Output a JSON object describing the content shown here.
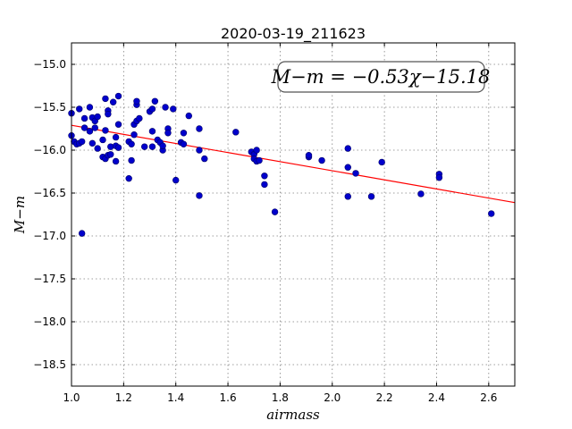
{
  "chart_data": {
    "type": "scatter",
    "title": "2020-03-19_211623",
    "xlabel": "airmass",
    "ylabel": "M−m",
    "xlim": [
      1.0,
      2.7
    ],
    "ylim": [
      -18.75,
      -14.75
    ],
    "y_inverted": true,
    "grid": true,
    "x_ticks": [
      "1.0",
      "1.2",
      "1.4",
      "1.6",
      "1.8",
      "2.0",
      "2.2",
      "2.4",
      "2.6"
    ],
    "y_ticks": [
      "−15.0",
      "−15.5",
      "−16.0",
      "−16.5",
      "−17.0",
      "−17.5",
      "−18.0",
      "−18.5"
    ],
    "point_color": "#0000cc",
    "fit_color": "#ff0000",
    "annotation": "M−m = −0.53χ−15.18",
    "fit": {
      "slope": -0.53,
      "intercept": -15.18
    },
    "points": [
      [
        1.0,
        -15.57
      ],
      [
        1.0,
        -15.83
      ],
      [
        1.01,
        -15.9
      ],
      [
        1.02,
        -15.93
      ],
      [
        1.03,
        -15.92
      ],
      [
        1.03,
        -15.52
      ],
      [
        1.04,
        -16.97
      ],
      [
        1.04,
        -15.9
      ],
      [
        1.05,
        -15.63
      ],
      [
        1.05,
        -15.74
      ],
      [
        1.07,
        -15.5
      ],
      [
        1.07,
        -15.78
      ],
      [
        1.08,
        -15.62
      ],
      [
        1.08,
        -15.92
      ],
      [
        1.09,
        -15.66
      ],
      [
        1.09,
        -15.74
      ],
      [
        1.1,
        -15.61
      ],
      [
        1.1,
        -15.98
      ],
      [
        1.12,
        -15.88
      ],
      [
        1.12,
        -16.08
      ],
      [
        1.13,
        -15.4
      ],
      [
        1.13,
        -15.77
      ],
      [
        1.13,
        -16.1
      ],
      [
        1.14,
        -15.54
      ],
      [
        1.14,
        -15.58
      ],
      [
        1.14,
        -16.06
      ],
      [
        1.15,
        -16.05
      ],
      [
        1.15,
        -15.96
      ],
      [
        1.16,
        -15.44
      ],
      [
        1.17,
        -15.85
      ],
      [
        1.17,
        -16.13
      ],
      [
        1.17,
        -15.95
      ],
      [
        1.18,
        -15.37
      ],
      [
        1.18,
        -15.97
      ],
      [
        1.18,
        -15.7
      ],
      [
        1.22,
        -16.33
      ],
      [
        1.22,
        -15.9
      ],
      [
        1.23,
        -15.93
      ],
      [
        1.23,
        -16.12
      ],
      [
        1.24,
        -15.82
      ],
      [
        1.24,
        -15.7
      ],
      [
        1.25,
        -15.47
      ],
      [
        1.25,
        -15.43
      ],
      [
        1.25,
        -15.66
      ],
      [
        1.26,
        -15.63
      ],
      [
        1.28,
        -15.96
      ],
      [
        1.3,
        -15.55
      ],
      [
        1.31,
        -15.52
      ],
      [
        1.31,
        -15.78
      ],
      [
        1.31,
        -15.96
      ],
      [
        1.32,
        -15.43
      ],
      [
        1.33,
        -15.88
      ],
      [
        1.34,
        -15.91
      ],
      [
        1.35,
        -16.0
      ],
      [
        1.35,
        -15.95
      ],
      [
        1.36,
        -15.5
      ],
      [
        1.37,
        -15.75
      ],
      [
        1.37,
        -15.8
      ],
      [
        1.39,
        -15.52
      ],
      [
        1.4,
        -16.35
      ],
      [
        1.42,
        -15.91
      ],
      [
        1.43,
        -15.8
      ],
      [
        1.43,
        -15.93
      ],
      [
        1.45,
        -15.6
      ],
      [
        1.49,
        -16.0
      ],
      [
        1.49,
        -15.75
      ],
      [
        1.49,
        -16.53
      ],
      [
        1.51,
        -16.1
      ],
      [
        1.63,
        -15.79
      ],
      [
        1.69,
        -16.02
      ],
      [
        1.7,
        -16.05
      ],
      [
        1.7,
        -16.1
      ],
      [
        1.71,
        -16.0
      ],
      [
        1.71,
        -16.13
      ],
      [
        1.72,
        -16.12
      ],
      [
        1.74,
        -16.3
      ],
      [
        1.74,
        -16.4
      ],
      [
        1.78,
        -16.72
      ],
      [
        1.91,
        -16.08
      ],
      [
        1.91,
        -16.06
      ],
      [
        1.96,
        -16.12
      ],
      [
        2.06,
        -15.98
      ],
      [
        2.06,
        -16.2
      ],
      [
        2.06,
        -16.54
      ],
      [
        2.09,
        -16.27
      ],
      [
        2.15,
        -16.54
      ],
      [
        2.19,
        -16.14
      ],
      [
        2.34,
        -16.51
      ],
      [
        2.41,
        -16.28
      ],
      [
        2.41,
        -16.32
      ],
      [
        2.61,
        -16.74
      ]
    ]
  }
}
